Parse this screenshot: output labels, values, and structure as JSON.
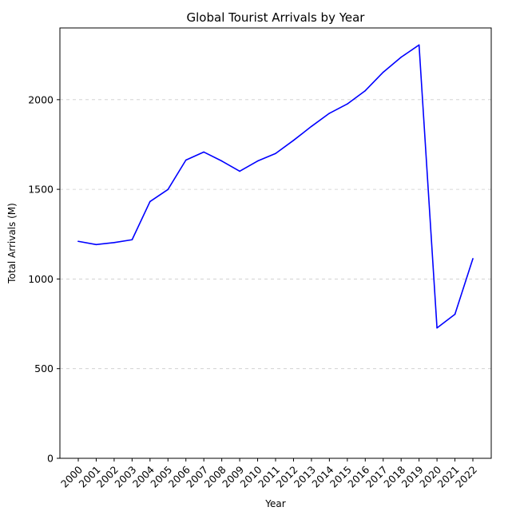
{
  "chart_data": {
    "type": "line",
    "title": "Global Tourist Arrivals by Year",
    "xlabel": "Year",
    "ylabel": "Total Arrivals (M)",
    "categories": [
      "2000",
      "2001",
      "2002",
      "2003",
      "2004",
      "2005",
      "2006",
      "2007",
      "2008",
      "2009",
      "2010",
      "2011",
      "2012",
      "2013",
      "2014",
      "2015",
      "2016",
      "2017",
      "2018",
      "2019",
      "2020",
      "2021",
      "2022"
    ],
    "series": [
      {
        "values": [
          1210,
          1192,
          1203,
          1219,
          1432,
          1499,
          1663,
          1708,
          1658,
          1601,
          1658,
          1700,
          1773,
          1851,
          1924,
          1976,
          2050,
          2153,
          2237,
          2305,
          727,
          803,
          1113
        ],
        "color": "#0000ff"
      }
    ],
    "ylim": [
      0,
      2400
    ],
    "yticks": [
      0,
      500,
      1000,
      1500,
      2000
    ],
    "grid": "horizontal dashed",
    "legend": "none"
  }
}
